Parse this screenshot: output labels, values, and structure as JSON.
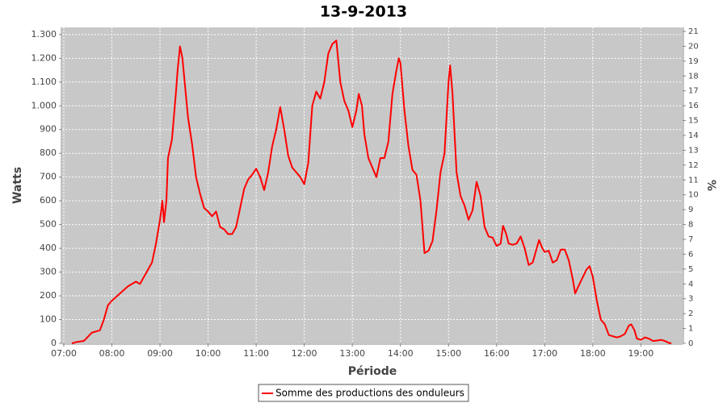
{
  "chart_data": {
    "type": "line",
    "title": "13-9-2013",
    "x_label": "Période",
    "y_label": "Watts",
    "y2_label": "%",
    "x": [
      "07:10",
      "07:15",
      "07:25",
      "07:35",
      "07:45",
      "07:50",
      "07:55",
      "08:00",
      "08:10",
      "08:20",
      "08:30",
      "08:35",
      "08:45",
      "08:50",
      "08:55",
      "09:00",
      "09:03",
      "09:05",
      "09:08",
      "09:10",
      "09:15",
      "09:20",
      "09:22",
      "09:25",
      "09:28",
      "09:35",
      "09:40",
      "09:45",
      "09:50",
      "09:55",
      "10:00",
      "10:05",
      "10:10",
      "10:15",
      "10:20",
      "10:25",
      "10:30",
      "10:35",
      "10:40",
      "10:45",
      "10:50",
      "10:55",
      "11:00",
      "11:05",
      "11:10",
      "11:15",
      "11:20",
      "11:25",
      "11:30",
      "11:35",
      "11:40",
      "11:45",
      "11:50",
      "11:55",
      "12:00",
      "12:05",
      "12:10",
      "12:15",
      "12:20",
      "12:25",
      "12:30",
      "12:35",
      "12:40",
      "12:45",
      "12:50",
      "12:55",
      "13:00",
      "13:05",
      "13:08",
      "13:12",
      "13:15",
      "13:20",
      "13:25",
      "13:30",
      "13:35",
      "13:40",
      "13:45",
      "13:50",
      "13:55",
      "13:58",
      "14:00",
      "14:05",
      "14:10",
      "14:15",
      "14:20",
      "14:25",
      "14:30",
      "14:35",
      "14:40",
      "14:45",
      "14:50",
      "14:55",
      "15:00",
      "15:02",
      "15:05",
      "15:10",
      "15:15",
      "15:20",
      "15:25",
      "15:30",
      "15:35",
      "15:40",
      "15:45",
      "15:50",
      "15:55",
      "16:00",
      "16:05",
      "16:08",
      "16:12",
      "16:15",
      "16:20",
      "16:25",
      "16:30",
      "16:35",
      "16:40",
      "16:45",
      "16:50",
      "16:53",
      "16:57",
      "17:00",
      "17:05",
      "17:10",
      "17:15",
      "17:20",
      "17:25",
      "17:30",
      "17:35",
      "17:38",
      "17:42",
      "17:47",
      "17:52",
      "17:56",
      "18:00",
      "18:05",
      "18:10",
      "18:15",
      "18:20",
      "18:25",
      "18:30",
      "18:35",
      "18:40",
      "18:45",
      "18:48",
      "18:52",
      "18:55",
      "19:00",
      "19:05",
      "19:10",
      "19:15",
      "19:20",
      "19:25",
      "19:30",
      "19:35",
      "19:38"
    ],
    "series": [
      {
        "name": "Somme des productions des onduleurs",
        "color": "#ff0000",
        "values": [
          0,
          5,
          10,
          45,
          55,
          100,
          160,
          180,
          210,
          240,
          260,
          250,
          310,
          340,
          420,
          520,
          600,
          510,
          600,
          780,
          860,
          1060,
          1150,
          1250,
          1200,
          950,
          840,
          700,
          630,
          570,
          555,
          535,
          555,
          490,
          480,
          460,
          460,
          490,
          570,
          650,
          690,
          710,
          735,
          700,
          645,
          720,
          830,
          900,
          995,
          900,
          790,
          740,
          720,
          700,
          670,
          760,
          1000,
          1060,
          1030,
          1100,
          1220,
          1260,
          1275,
          1100,
          1020,
          980,
          910,
          980,
          1050,
          1000,
          880,
          780,
          740,
          700,
          780,
          780,
          850,
          1050,
          1150,
          1200,
          1180,
          980,
          830,
          730,
          710,
          600,
          380,
          390,
          430,
          560,
          720,
          800,
          1100,
          1170,
          1050,
          720,
          620,
          580,
          520,
          560,
          680,
          620,
          490,
          450,
          445,
          410,
          420,
          495,
          460,
          420,
          415,
          420,
          450,
          400,
          330,
          340,
          400,
          435,
          400,
          385,
          390,
          340,
          350,
          395,
          395,
          350,
          270,
          210,
          240,
          275,
          310,
          325,
          280,
          180,
          100,
          80,
          35,
          30,
          25,
          30,
          40,
          75,
          80,
          55,
          20,
          15,
          25,
          20,
          10,
          12,
          15,
          10,
          2,
          0
        ]
      }
    ],
    "xlim": [
      "06:58",
      "19:52"
    ],
    "xticks": [
      "07:00",
      "08:00",
      "09:00",
      "10:00",
      "11:00",
      "12:00",
      "13:00",
      "14:00",
      "15:00",
      "16:00",
      "17:00",
      "18:00",
      "19:00"
    ],
    "ylim": [
      0,
      1330
    ],
    "yticks": [
      0,
      100,
      200,
      300,
      400,
      500,
      600,
      700,
      800,
      900,
      {
        "value": 1000,
        "label": "1.000"
      },
      {
        "value": 1100,
        "label": "1.100"
      },
      {
        "value": 1200,
        "label": "1.200"
      },
      {
        "value": 1300,
        "label": "1.300"
      }
    ],
    "y2lim": [
      0,
      21.27
    ],
    "y2ticks": [
      0,
      1,
      2,
      3,
      4,
      5,
      6,
      7,
      8,
      9,
      10,
      11,
      12,
      13,
      14,
      15,
      16,
      17,
      18,
      19,
      20,
      21
    ],
    "grid": true,
    "legend": "bottom"
  }
}
